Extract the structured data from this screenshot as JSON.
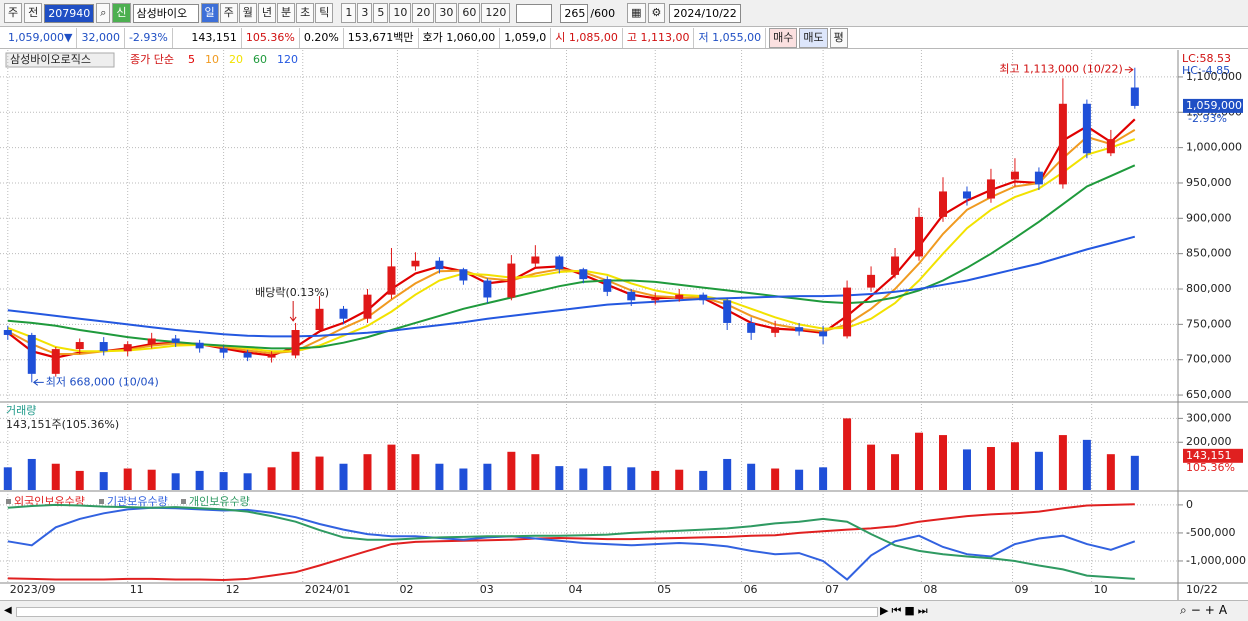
{
  "toolbar": {
    "period_label": "주",
    "prev": "전",
    "code": "207940",
    "name": "삼성바이오",
    "new": "신",
    "periods": [
      "일",
      "주",
      "월",
      "년",
      "분",
      "초",
      "틱"
    ],
    "intervals": [
      "1",
      "3",
      "5",
      "10",
      "20",
      "30",
      "60",
      "120"
    ],
    "count": "265",
    "max_count": "/600",
    "date": "2024/10/22"
  },
  "info": {
    "price": "1,059,000▼",
    "change": "32,000",
    "rate": "-2.93%",
    "volume": "143,151",
    "vol_rate": "105.36%",
    "turnover": "0.20%",
    "amount": "153,671백만",
    "ask": "호가 1,060,00",
    "bid": "1,059,0",
    "open": "시 1,085,00",
    "high": "고 1,113,00",
    "low": "저 1,055,00",
    "buy": "매수",
    "sell": "매도",
    "avg": "평"
  },
  "chart_data": {
    "type": "candlestick",
    "name": "삼성바이오로직스",
    "ma_label": "종가 단순",
    "lc": "LC:58.53",
    "hc": "HC:-4.85",
    "high_note": "최고 1,113,000 (10/22)",
    "low_note": "최저 668,000 (10/04)",
    "dividend_note": "배당락(0.13%)",
    "xlim": [
      -0.2,
      48.8
    ],
    "xticks": [
      {
        "value": 0,
        "label": "2023/09"
      },
      {
        "value": 5,
        "label": "11"
      },
      {
        "value": 9,
        "label": "12"
      },
      {
        "value": 12.3,
        "label": "2024/01"
      },
      {
        "value": 16.25,
        "label": "02"
      },
      {
        "value": 19.6,
        "label": "03"
      },
      {
        "value": 23.3,
        "label": "04"
      },
      {
        "value": 27,
        "label": "05"
      },
      {
        "value": 30.6,
        "label": "06"
      },
      {
        "value": 34,
        "label": "07"
      },
      {
        "value": 38.1,
        "label": "08"
      },
      {
        "value": 41.9,
        "label": "09"
      },
      {
        "value": 45.2,
        "label": "10"
      }
    ],
    "last_date_label": "10/22",
    "price": {
      "ylim": [
        643000,
        1131000
      ],
      "yticks": [
        {
          "value": 650000,
          "label": "650,000"
        },
        {
          "value": 700000,
          "label": "700,000"
        },
        {
          "value": 750000,
          "label": "750,000"
        },
        {
          "value": 800000,
          "label": "800,000"
        },
        {
          "value": 850000,
          "label": "850,000"
        },
        {
          "value": 900000,
          "label": "900,000"
        },
        {
          "value": 950000,
          "label": "950,000"
        },
        {
          "value": 1000000,
          "label": "1,000,000"
        },
        {
          "value": 1050000,
          "label": "1,050,000"
        },
        {
          "value": 1100000,
          "label": "1,100,000"
        }
      ],
      "up_color": "#e01818",
      "down_color": "#1f4fd8",
      "open": [
        742000,
        735000,
        680000,
        715000,
        725000,
        712000,
        722000,
        730000,
        724000,
        716000,
        710000,
        703000,
        706000,
        742000,
        772000,
        758000,
        792000,
        832000,
        840000,
        828000,
        812000,
        788000,
        836000,
        846000,
        828000,
        814000,
        796000,
        784000,
        786000,
        792000,
        784000,
        752000,
        738000,
        746000,
        740000,
        733000,
        802000,
        820000,
        846000,
        902000,
        938000,
        928000,
        955000,
        966000,
        948000,
        1062000,
        992000,
        1085000
      ],
      "high": [
        748000,
        738000,
        718000,
        730000,
        732000,
        726000,
        738000,
        735000,
        728000,
        720000,
        714000,
        712000,
        752000,
        790000,
        776000,
        800000,
        858000,
        852000,
        845000,
        830000,
        815000,
        848000,
        862000,
        848000,
        830000,
        818000,
        800000,
        795000,
        800000,
        795000,
        788000,
        760000,
        755000,
        752000,
        748000,
        812000,
        832000,
        858000,
        915000,
        958000,
        945000,
        970000,
        985000,
        972000,
        1098000,
        1068000,
        1025000,
        1113000
      ],
      "low": [
        728000,
        668000,
        676000,
        708000,
        706000,
        705000,
        716000,
        718000,
        710000,
        702000,
        698000,
        696000,
        702000,
        738000,
        750000,
        752000,
        786000,
        826000,
        822000,
        806000,
        780000,
        784000,
        830000,
        822000,
        808000,
        790000,
        776000,
        778000,
        782000,
        778000,
        742000,
        728000,
        732000,
        734000,
        722000,
        730000,
        796000,
        815000,
        840000,
        895000,
        918000,
        922000,
        945000,
        940000,
        942000,
        985000,
        988000,
        1055000
      ],
      "close": [
        735000,
        680000,
        715000,
        725000,
        712000,
        722000,
        730000,
        724000,
        716000,
        710000,
        703000,
        706000,
        742000,
        772000,
        758000,
        792000,
        832000,
        840000,
        828000,
        812000,
        788000,
        836000,
        846000,
        828000,
        814000,
        796000,
        784000,
        786000,
        792000,
        784000,
        752000,
        738000,
        746000,
        740000,
        733000,
        802000,
        820000,
        846000,
        902000,
        938000,
        928000,
        955000,
        966000,
        948000,
        1062000,
        992000,
        1012000,
        1059000
      ],
      "ma": [
        {
          "name": "5",
          "color": "#e00000",
          "values": [
            738000,
            712000,
            703000,
            710000,
            712000,
            716000,
            722000,
            724000,
            722000,
            716000,
            710000,
            706000,
            718000,
            740000,
            752000,
            770000,
            800000,
            822000,
            832000,
            825000,
            808000,
            812000,
            830000,
            832000,
            820000,
            806000,
            792000,
            787000,
            788000,
            787000,
            770000,
            752000,
            744000,
            742000,
            738000,
            762000,
            790000,
            820000,
            860000,
            905000,
            925000,
            940000,
            952000,
            950000,
            1010000,
            1030000,
            1008000,
            1040000
          ]
        },
        {
          "name": "10",
          "color": "#f09a20",
          "values": [
            740000,
            722000,
            708000,
            708000,
            712000,
            714000,
            720000,
            723000,
            722000,
            718000,
            713000,
            709000,
            712000,
            728000,
            745000,
            760000,
            785000,
            808000,
            825000,
            826000,
            815000,
            812000,
            822000,
            828000,
            824000,
            812000,
            798000,
            790000,
            788000,
            788000,
            778000,
            762000,
            750000,
            744000,
            740000,
            750000,
            772000,
            800000,
            836000,
            878000,
            912000,
            930000,
            945000,
            950000,
            985000,
            1015000,
            1005000,
            1025000
          ]
        },
        {
          "name": "20",
          "color": "#f2e200",
          "values": [
            745000,
            732000,
            718000,
            712000,
            712000,
            713000,
            716000,
            720000,
            721000,
            720000,
            716000,
            712000,
            712000,
            720000,
            734000,
            748000,
            768000,
            792000,
            812000,
            822000,
            820000,
            816000,
            818000,
            824000,
            826000,
            820000,
            808000,
            798000,
            792000,
            790000,
            784000,
            772000,
            760000,
            750000,
            744000,
            745000,
            758000,
            780000,
            812000,
            850000,
            886000,
            912000,
            930000,
            942000,
            965000,
            990000,
            1000000,
            1012000
          ]
        },
        {
          "name": "60",
          "color": "#1f9a3c",
          "values": [
            755000,
            752000,
            748000,
            742000,
            737000,
            732000,
            728000,
            725000,
            722000,
            720000,
            718000,
            716000,
            716000,
            718000,
            724000,
            732000,
            742000,
            752000,
            762000,
            772000,
            780000,
            788000,
            796000,
            804000,
            810000,
            812000,
            812000,
            810000,
            806000,
            802000,
            798000,
            794000,
            790000,
            786000,
            782000,
            780000,
            782000,
            788000,
            798000,
            812000,
            830000,
            850000,
            872000,
            895000,
            920000,
            945000,
            960000,
            975000
          ]
        },
        {
          "name": "120",
          "color": "#2458e0",
          "values": [
            770000,
            766000,
            762000,
            758000,
            754000,
            750000,
            746000,
            742000,
            739000,
            736000,
            734000,
            733000,
            733000,
            734000,
            736000,
            738000,
            741000,
            745000,
            749000,
            753000,
            758000,
            762000,
            766000,
            770000,
            774000,
            778000,
            780000,
            782000,
            784000,
            786000,
            787000,
            788000,
            789000,
            790000,
            790000,
            791000,
            793000,
            796000,
            800000,
            806000,
            812000,
            820000,
            828000,
            836000,
            846000,
            856000,
            865000,
            874000
          ]
        }
      ],
      "current": {
        "value": 1059000,
        "label": "1,059,000"
      },
      "current_rate": "-2.93%"
    },
    "volume": {
      "title": "거래량",
      "summary": "143,151주(105.36%)",
      "ylim": [
        0,
        356000
      ],
      "yticks": [
        {
          "value": 200000,
          "label": "200,000"
        },
        {
          "value": 300000,
          "label": "300,000"
        }
      ],
      "values": [
        95000,
        130000,
        110000,
        80000,
        75000,
        90000,
        85000,
        70000,
        80000,
        75000,
        70000,
        95000,
        160000,
        140000,
        110000,
        150000,
        190000,
        150000,
        110000,
        90000,
        110000,
        160000,
        150000,
        100000,
        90000,
        100000,
        95000,
        80000,
        85000,
        80000,
        130000,
        110000,
        90000,
        85000,
        95000,
        300000,
        190000,
        150000,
        240000,
        230000,
        170000,
        180000,
        200000,
        160000,
        230000,
        210000,
        150000,
        143151
      ],
      "current": {
        "value": 143151,
        "label": "143,151"
      },
      "current_rate": "105.36%"
    },
    "holdings": {
      "ylim": [
        -1375000,
        230000
      ],
      "yticks": [
        {
          "value": 0,
          "label": "0"
        },
        {
          "value": -500000,
          "label": "-500,000"
        },
        {
          "value": -1000000,
          "label": "-1,000,000"
        }
      ],
      "series": [
        {
          "name": "외국인보유수량",
          "color": "#e02020",
          "values": [
            -1310000,
            -1320000,
            -1330000,
            -1330000,
            -1330000,
            -1320000,
            -1320000,
            -1330000,
            -1330000,
            -1340000,
            -1320000,
            -1260000,
            -1200000,
            -1080000,
            -950000,
            -820000,
            -700000,
            -660000,
            -650000,
            -640000,
            -630000,
            -620000,
            -600000,
            -590000,
            -600000,
            -610000,
            -610000,
            -600000,
            -590000,
            -580000,
            -570000,
            -550000,
            -540000,
            -500000,
            -470000,
            -440000,
            -420000,
            -380000,
            -300000,
            -250000,
            -200000,
            -170000,
            -150000,
            -120000,
            -60000,
            -10000,
            0,
            10000
          ]
        },
        {
          "name": "기관보유수량",
          "color": "#3262e0",
          "values": [
            -650000,
            -720000,
            -400000,
            -250000,
            -150000,
            -80000,
            -50000,
            -60000,
            -80000,
            -100000,
            -90000,
            -140000,
            -220000,
            -340000,
            -440000,
            -520000,
            -560000,
            -560000,
            -590000,
            -620000,
            -580000,
            -560000,
            -600000,
            -640000,
            -680000,
            -700000,
            -720000,
            -700000,
            -680000,
            -700000,
            -740000,
            -820000,
            -880000,
            -860000,
            -1000000,
            -1330000,
            -900000,
            -650000,
            -550000,
            -750000,
            -880000,
            -920000,
            -700000,
            -600000,
            -550000,
            -700000,
            -800000,
            -650000
          ]
        },
        {
          "name": "개인보유수량",
          "color": "#2f9a62",
          "values": [
            -50000,
            -20000,
            0,
            -10000,
            -30000,
            -40000,
            -50000,
            -40000,
            -60000,
            -80000,
            -120000,
            -200000,
            -300000,
            -450000,
            -580000,
            -620000,
            -620000,
            -600000,
            -580000,
            -570000,
            -560000,
            -560000,
            -550000,
            -550000,
            -540000,
            -530000,
            -500000,
            -480000,
            -460000,
            -440000,
            -420000,
            -380000,
            -330000,
            -300000,
            -250000,
            -300000,
            -520000,
            -720000,
            -820000,
            -880000,
            -920000,
            -950000,
            -1000000,
            -1080000,
            -1150000,
            -1260000,
            -1290000,
            -1320000
          ]
        }
      ]
    }
  }
}
